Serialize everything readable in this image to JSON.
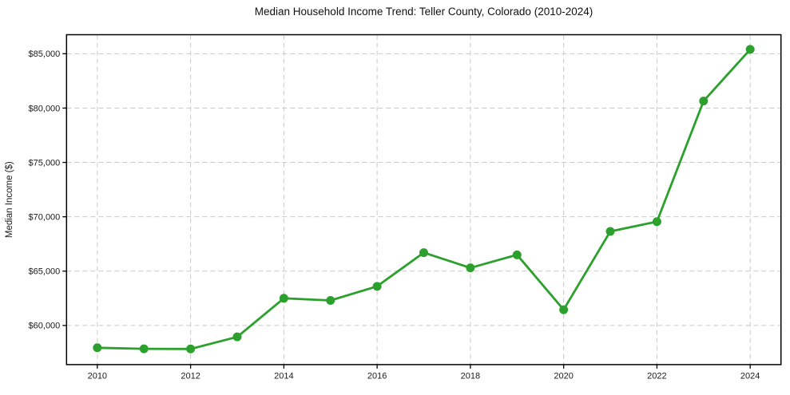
{
  "chart_data": {
    "type": "line",
    "title": "Median Household Income Trend: Teller County, Colorado (2010-2024)",
    "xlabel": "",
    "ylabel": "Median Income ($)",
    "x": [
      2010,
      2011,
      2012,
      2013,
      2014,
      2015,
      2016,
      2017,
      2018,
      2019,
      2020,
      2021,
      2022,
      2023,
      2024
    ],
    "values": [
      57950,
      57850,
      57840,
      58950,
      62500,
      62300,
      63600,
      66700,
      65300,
      66500,
      61450,
      68650,
      69550,
      80650,
      85400
    ],
    "xticks": [
      2010,
      2012,
      2014,
      2016,
      2018,
      2020,
      2022,
      2024
    ],
    "ytick_values": [
      60000,
      65000,
      70000,
      75000,
      80000,
      85000
    ],
    "ytick_labels": [
      "$60,000",
      "$65,000",
      "$70,000",
      "$75,000",
      "$80,000",
      "$85,000"
    ],
    "xlim": [
      2009.34,
      2024.66
    ],
    "ylim": [
      56400,
      86750
    ],
    "grid": true,
    "grid_style": "dashed",
    "legend": false,
    "marker": "circle",
    "colors": {
      "line": "#2ca02c",
      "marker": "#2ca02c",
      "grid": "#c9c9c9",
      "axis": "#000000",
      "text": "#1a1a1a",
      "background": "#ffffff"
    }
  }
}
